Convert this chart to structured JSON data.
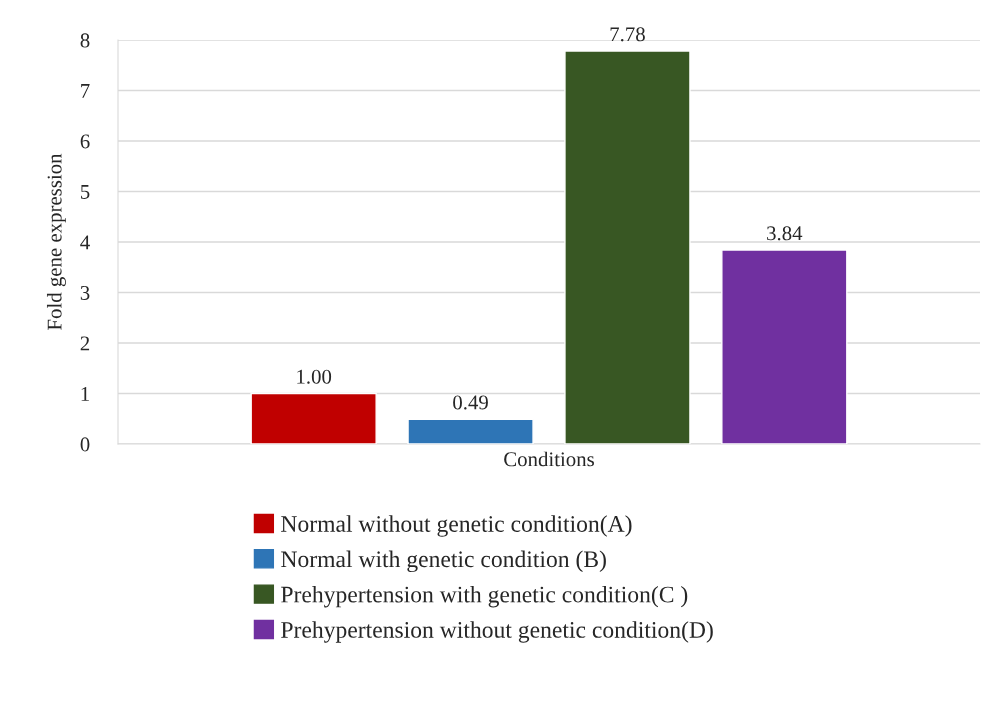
{
  "chart_data": {
    "type": "bar",
    "xlabel": "Conditions",
    "ylabel": "Fold gene expression",
    "categories": [
      null
    ],
    "series": [
      {
        "name": "Normal without genetic condition(A)",
        "color": "#c00000",
        "values": [
          1.0
        ],
        "value_labels": [
          "1.00"
        ]
      },
      {
        "name": "Normal with genetic condition (B)",
        "color": "#2e75b6",
        "values": [
          0.49
        ],
        "value_labels": [
          "0.49"
        ]
      },
      {
        "name": "Prehypertension with genetic condition(C )",
        "color": "#385723",
        "values": [
          7.78
        ],
        "value_labels": [
          "7.78"
        ]
      },
      {
        "name": "Prehypertension without genetic condition(D)",
        "color": "#7030a0",
        "values": [
          3.84
        ],
        "value_labels": [
          "3.84"
        ]
      }
    ],
    "ylim": [
      0,
      8
    ],
    "yticks": [
      0,
      1,
      2,
      3,
      4,
      5,
      6,
      7,
      8
    ],
    "grid": "y",
    "legend": "bottom"
  }
}
